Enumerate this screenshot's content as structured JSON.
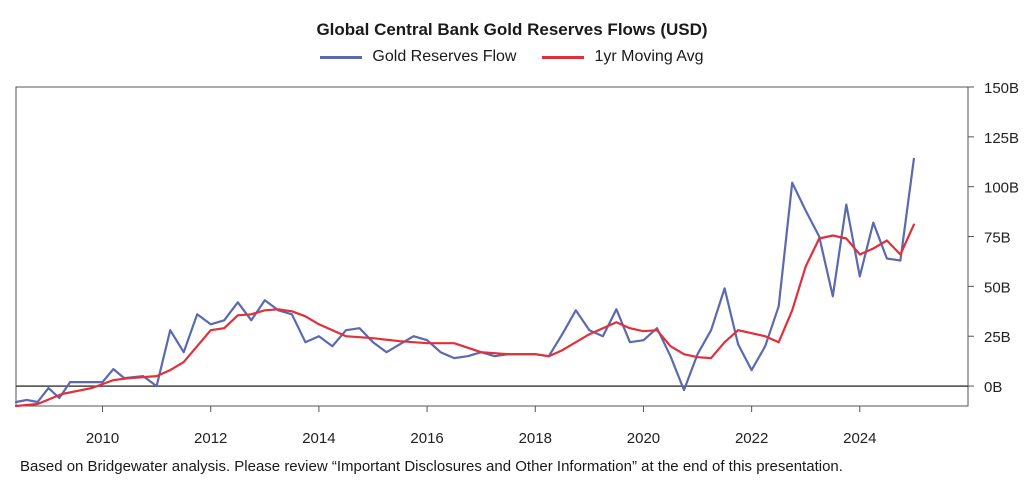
{
  "chart_data": {
    "type": "line",
    "title": "Global Central Bank Gold Reserves Flows (USD)",
    "legend": [
      "Gold Reserves Flow",
      "1yr Moving Avg"
    ],
    "colors": {
      "flow": "#5b69b1",
      "avg": "#e0303a",
      "axis": "#555555",
      "zero": "#444444"
    },
    "xlabel": "",
    "ylabel": "",
    "xlim": [
      2008.4,
      2026.0
    ],
    "ylim": [
      -10,
      150
    ],
    "x_ticks": [
      2010,
      2012,
      2014,
      2016,
      2018,
      2020,
      2022,
      2024
    ],
    "x_tick_labels": [
      "2010",
      "2012",
      "2014",
      "2016",
      "2018",
      "2020",
      "2022",
      "2024"
    ],
    "y_ticks": [
      0,
      25,
      50,
      75,
      100,
      125,
      150
    ],
    "y_tick_labels": [
      "0B",
      "25B",
      "50B",
      "75B",
      "100B",
      "125B",
      "150B"
    ],
    "series": [
      {
        "name": "Gold Reserves Flow",
        "key": "flow",
        "x": [
          2008.4,
          2008.6,
          2008.8,
          2009.0,
          2009.2,
          2009.4,
          2009.8,
          2010.0,
          2010.2,
          2010.4,
          2010.75,
          2011.0,
          2011.25,
          2011.5,
          2011.75,
          2012.0,
          2012.25,
          2012.5,
          2012.75,
          2013.0,
          2013.25,
          2013.5,
          2013.75,
          2014.0,
          2014.25,
          2014.5,
          2014.75,
          2015.0,
          2015.25,
          2015.5,
          2015.75,
          2016.0,
          2016.25,
          2016.5,
          2016.75,
          2017.0,
          2017.25,
          2017.5,
          2017.75,
          2018.0,
          2018.25,
          2018.5,
          2018.75,
          2019.0,
          2019.25,
          2019.5,
          2019.75,
          2020.0,
          2020.25,
          2020.5,
          2020.75,
          2021.0,
          2021.25,
          2021.5,
          2021.75,
          2022.0,
          2022.25,
          2022.5,
          2022.75,
          2023.0,
          2023.25,
          2023.5,
          2023.75,
          2024.0,
          2024.25,
          2024.5,
          2024.75,
          2025.0
        ],
        "y": [
          -8,
          -7,
          -8,
          -1,
          -6,
          2,
          2,
          2,
          8.5,
          4,
          5,
          0,
          28,
          17,
          36,
          31,
          33,
          42,
          33,
          43,
          38,
          36,
          22,
          25,
          20,
          28,
          29,
          22,
          17,
          21,
          25,
          23,
          17,
          14,
          15,
          17,
          15,
          16,
          16,
          16,
          15,
          26,
          38,
          28,
          25,
          38.5,
          22,
          23,
          29,
          15,
          -2,
          16,
          28,
          49,
          21,
          8,
          20,
          40,
          102,
          88,
          75,
          45,
          91,
          55,
          82,
          64,
          63,
          114
        ]
      },
      {
        "name": "1yr Moving Avg",
        "key": "avg",
        "x": [
          2008.4,
          2008.8,
          2009.25,
          2009.8,
          2010.2,
          2010.5,
          2011.0,
          2011.25,
          2011.5,
          2012.0,
          2012.25,
          2012.5,
          2012.75,
          2013.0,
          2013.25,
          2013.5,
          2013.75,
          2014.0,
          2014.5,
          2015.0,
          2015.5,
          2016.0,
          2016.5,
          2017.0,
          2017.5,
          2018.0,
          2018.25,
          2018.5,
          2019.0,
          2019.5,
          2019.75,
          2020.0,
          2020.25,
          2020.5,
          2020.75,
          2021.0,
          2021.25,
          2021.5,
          2021.75,
          2022.0,
          2022.25,
          2022.5,
          2022.75,
          2023.0,
          2023.25,
          2023.5,
          2023.75,
          2024.0,
          2024.25,
          2024.5,
          2024.75,
          2025.0
        ],
        "y": [
          -10,
          -9,
          -4,
          -1,
          3,
          4,
          5,
          8,
          12,
          28,
          29,
          35.5,
          36,
          38,
          38.5,
          37.5,
          35,
          31,
          25,
          24,
          22.5,
          21.5,
          21.5,
          17,
          16,
          16,
          15,
          18,
          26,
          32,
          29,
          27.5,
          28,
          20,
          16,
          14.5,
          14,
          22,
          28,
          26.5,
          25,
          22,
          38,
          60,
          74,
          75.5,
          74,
          66,
          69,
          73,
          66,
          81
        ]
      }
    ]
  },
  "footnote": "Based on Bridgewater analysis. Please review “Important Disclosures and Other Information” at the end of this presentation."
}
